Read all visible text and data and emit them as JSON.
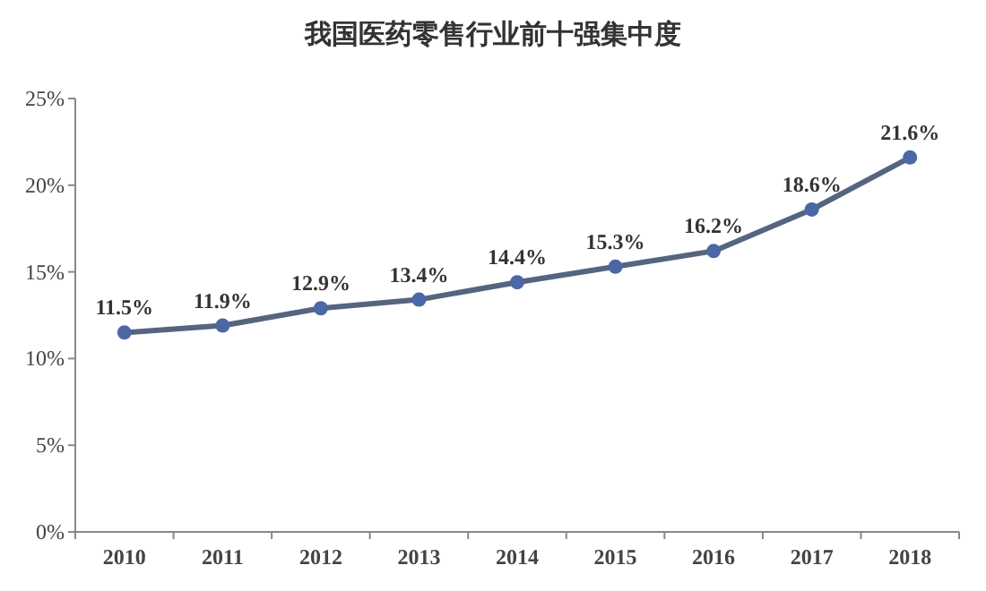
{
  "chart_data": {
    "type": "line",
    "title": "我国医药零售行业前十强集中度",
    "categories": [
      "2010",
      "2011",
      "2012",
      "2013",
      "2014",
      "2015",
      "2016",
      "2017",
      "2018"
    ],
    "series": [
      {
        "color": "#56657f",
        "values": [
          11.5,
          11.9,
          12.9,
          13.4,
          14.4,
          15.3,
          16.2,
          18.6,
          21.6
        ],
        "value_labels": [
          "11.5%",
          "11.9%",
          "12.9%",
          "13.4%",
          "14.4%",
          "15.3%",
          "16.2%",
          "18.6%",
          "21.6%"
        ]
      }
    ],
    "ylim": [
      0,
      25
    ],
    "yticks": [
      {
        "value": 0,
        "label": "0%"
      },
      {
        "value": 5,
        "label": "5%"
      },
      {
        "value": 10,
        "label": "10%"
      },
      {
        "value": 15,
        "label": "15%"
      },
      {
        "value": 20,
        "label": "20%"
      },
      {
        "value": 25,
        "label": "25%"
      }
    ],
    "grid": false,
    "marker": "circle",
    "line_style": "solid"
  }
}
